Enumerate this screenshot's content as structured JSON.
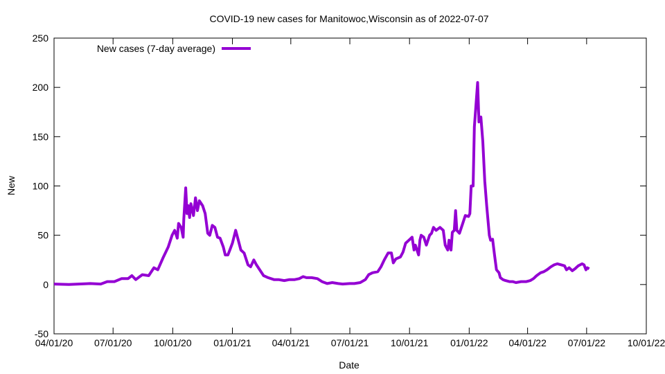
{
  "chart_data": {
    "type": "line",
    "title": "COVID-19 new cases for Manitowoc,Wisconsin as of 2022-07-07",
    "xlabel": "Date",
    "ylabel": "New",
    "x_start_date": "2020-04-01",
    "x_unit": "days since 2020-04-01",
    "xlim": [
      0,
      913
    ],
    "ylim": [
      -50,
      250
    ],
    "yticks": [
      -50,
      0,
      50,
      100,
      150,
      200,
      250
    ],
    "xticks": [
      {
        "day": 0,
        "label": "04/01/20"
      },
      {
        "day": 91,
        "label": "07/01/20"
      },
      {
        "day": 183,
        "label": "10/01/20"
      },
      {
        "day": 275,
        "label": "01/01/21"
      },
      {
        "day": 365,
        "label": "04/01/21"
      },
      {
        "day": 456,
        "label": "07/01/21"
      },
      {
        "day": 548,
        "label": "10/01/21"
      },
      {
        "day": 640,
        "label": "01/01/22"
      },
      {
        "day": 730,
        "label": "04/01/22"
      },
      {
        "day": 821,
        "label": "07/01/22"
      },
      {
        "day": 913,
        "label": "10/01/22"
      }
    ],
    "grid": false,
    "legend_position": "top-left",
    "series": [
      {
        "name": "New cases (7-day average)",
        "color": "#9400d3",
        "x": [
          0,
          23,
          56,
          72,
          82,
          93,
          104,
          114,
          120,
          126,
          136,
          146,
          154,
          160,
          168,
          176,
          182,
          186,
          190,
          192,
          196,
          199,
          200,
          203,
          205,
          207,
          209,
          211,
          215,
          218,
          221,
          224,
          229,
          233,
          237,
          240,
          244,
          248,
          252,
          256,
          261,
          264,
          268,
          271,
          275,
          280,
          284,
          288,
          293,
          299,
          303,
          308,
          312,
          317,
          323,
          330,
          339,
          346,
          355,
          363,
          371,
          378,
          384,
          389,
          397,
          406,
          413,
          421,
          429,
          438,
          445,
          456,
          463,
          472,
          480,
          485,
          491,
          499,
          504,
          509,
          515,
          520,
          523,
          527,
          534,
          538,
          542,
          547,
          552,
          555,
          557,
          562,
          564,
          566,
          570,
          574,
          579,
          582,
          585,
          589,
          595,
          600,
          603,
          607,
          609,
          612,
          614,
          617,
          619,
          621,
          625,
          630,
          634,
          639,
          641,
          643,
          646,
          648,
          650,
          653,
          655,
          658,
          661,
          664,
          667,
          671,
          673,
          676,
          679,
          682,
          686,
          688,
          692,
          696,
          702,
          707,
          712,
          720,
          728,
          734,
          739,
          744,
          750,
          755,
          760,
          766,
          771,
          776,
          782,
          787,
          790,
          794,
          799,
          803,
          808,
          814,
          817,
          820,
          822,
          825
        ],
        "y": [
          0.5,
          0,
          1,
          0.5,
          3,
          3,
          6,
          6,
          9,
          5,
          10,
          9,
          17,
          15,
          27,
          38,
          50,
          55,
          47,
          62,
          58,
          48,
          66,
          98,
          72,
          80,
          68,
          82,
          70,
          88,
          75,
          85,
          80,
          72,
          52,
          50,
          60,
          58,
          48,
          47,
          38,
          30,
          30,
          35,
          42,
          55,
          45,
          35,
          32,
          20,
          18,
          25,
          20,
          15,
          9,
          7,
          5,
          5,
          4,
          5,
          5,
          6,
          8,
          7,
          7,
          6,
          3,
          1,
          2,
          1,
          0.5,
          1,
          1,
          2,
          5,
          10,
          12,
          13,
          18,
          25,
          32,
          32,
          22,
          26,
          28,
          33,
          42,
          45,
          48,
          35,
          40,
          30,
          45,
          50,
          48,
          40,
          50,
          52,
          58,
          55,
          58,
          55,
          40,
          35,
          45,
          35,
          53,
          55,
          75,
          55,
          52,
          62,
          70,
          69,
          72,
          100,
          100,
          160,
          178,
          205,
          165,
          170,
          145,
          105,
          80,
          50,
          45,
          46,
          30,
          15,
          12,
          7,
          5,
          4,
          3,
          3,
          2,
          3,
          3,
          4,
          6,
          9,
          12,
          13,
          15,
          18,
          20,
          21,
          20,
          19,
          15,
          17,
          14,
          16,
          19,
          21,
          20,
          15,
          17,
          16
        ]
      }
    ]
  }
}
